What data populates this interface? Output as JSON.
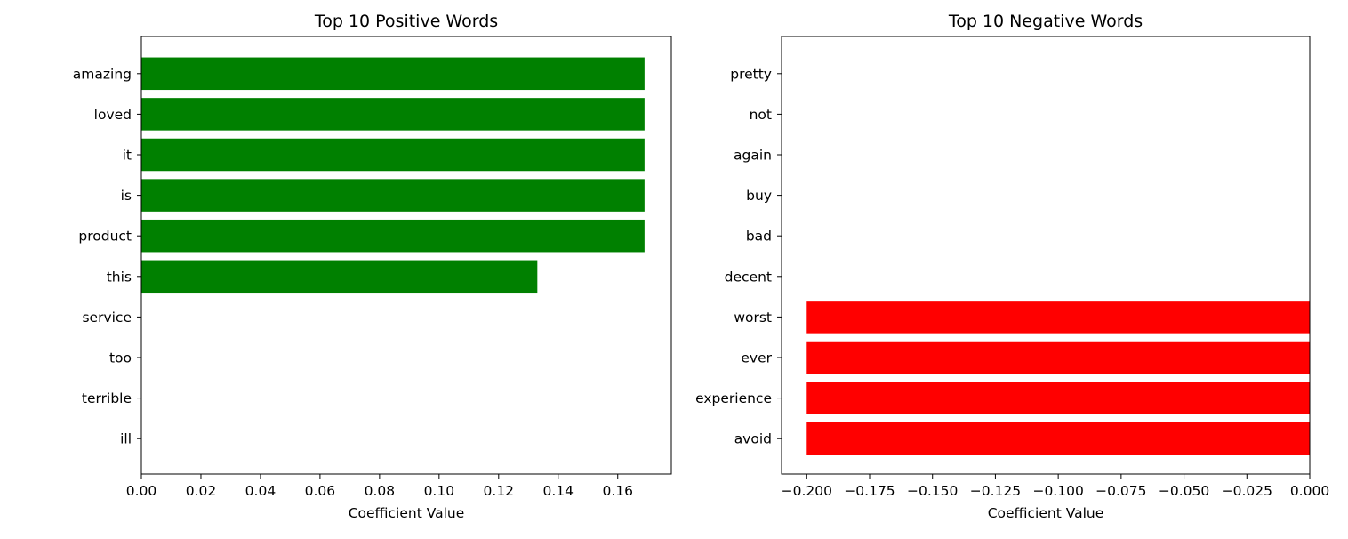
{
  "chart_data": [
    {
      "type": "bar",
      "orientation": "horizontal",
      "title": "Top 10 Positive Words",
      "xlabel": "Coefficient Value",
      "ylabel": "",
      "categories": [
        "amazing",
        "loved",
        "it",
        "is",
        "product",
        "this",
        "service",
        "too",
        "terrible",
        "ill"
      ],
      "values": [
        0.169,
        0.169,
        0.169,
        0.169,
        0.169,
        0.133,
        0,
        0,
        0,
        0
      ],
      "xlim": [
        0,
        0.178
      ],
      "xticks": [
        "0.00",
        "0.02",
        "0.04",
        "0.06",
        "0.08",
        "0.10",
        "0.12",
        "0.14",
        "0.16"
      ],
      "bar_color": "#008000",
      "grid": false
    },
    {
      "type": "bar",
      "orientation": "horizontal",
      "title": "Top 10 Negative Words",
      "xlabel": "Coefficient Value",
      "ylabel": "",
      "categories": [
        "pretty",
        "not",
        "again",
        "buy",
        "bad",
        "decent",
        "worst",
        "ever",
        "experience",
        "avoid"
      ],
      "values": [
        0,
        0,
        0,
        0,
        0,
        0,
        -0.2,
        -0.2,
        -0.2,
        -0.2
      ],
      "xlim": [
        -0.21,
        0
      ],
      "xticks": [
        "−0.200",
        "−0.175",
        "−0.150",
        "−0.125",
        "−0.100",
        "−0.075",
        "−0.050",
        "−0.025",
        "0.000"
      ],
      "bar_color": "#ff0000",
      "grid": false
    }
  ]
}
